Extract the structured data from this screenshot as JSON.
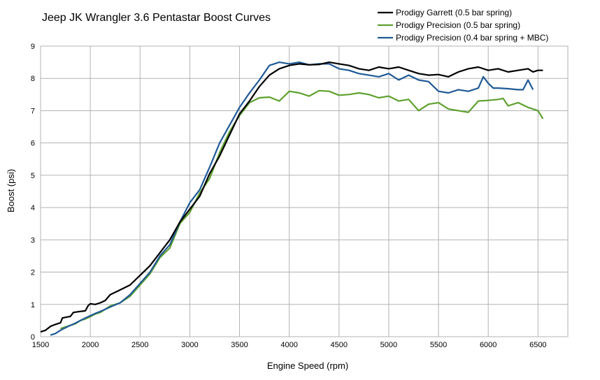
{
  "chart_data": {
    "type": "line",
    "title": "Jeep JK Wrangler 3.6 Pentastar Boost Curves",
    "xlabel": "Engine Speed (rpm)",
    "ylabel": "Boost (psi)",
    "xlim": [
      1500,
      6800
    ],
    "ylim": [
      0,
      9
    ],
    "x_ticks": [
      "1500",
      "2000",
      "2500",
      "3000",
      "3500",
      "4000",
      "4500",
      "5000",
      "5500",
      "6000",
      "6500"
    ],
    "y_ticks": [
      "0",
      "1",
      "2",
      "3",
      "4",
      "5",
      "6",
      "7",
      "8",
      "9"
    ],
    "grid": true,
    "legend_position": "top-right",
    "series": [
      {
        "name": "Prodigy Garrett (0.5 bar spring)",
        "color": "#000000",
        "points": [
          [
            1500,
            0.15
          ],
          [
            1550,
            0.2
          ],
          [
            1600,
            0.32
          ],
          [
            1650,
            0.38
          ],
          [
            1700,
            0.43
          ],
          [
            1720,
            0.58
          ],
          [
            1750,
            0.6
          ],
          [
            1800,
            0.63
          ],
          [
            1830,
            0.75
          ],
          [
            1870,
            0.77
          ],
          [
            1950,
            0.8
          ],
          [
            1980,
            0.97
          ],
          [
            2000,
            1.02
          ],
          [
            2050,
            1.0
          ],
          [
            2100,
            1.05
          ],
          [
            2150,
            1.12
          ],
          [
            2200,
            1.3
          ],
          [
            2300,
            1.45
          ],
          [
            2400,
            1.6
          ],
          [
            2500,
            1.9
          ],
          [
            2600,
            2.2
          ],
          [
            2700,
            2.6
          ],
          [
            2800,
            3.0
          ],
          [
            2900,
            3.55
          ],
          [
            3000,
            3.95
          ],
          [
            3100,
            4.35
          ],
          [
            3200,
            5.05
          ],
          [
            3300,
            5.6
          ],
          [
            3400,
            6.25
          ],
          [
            3500,
            6.9
          ],
          [
            3600,
            7.3
          ],
          [
            3700,
            7.75
          ],
          [
            3800,
            8.1
          ],
          [
            3900,
            8.3
          ],
          [
            4000,
            8.4
          ],
          [
            4100,
            8.45
          ],
          [
            4200,
            8.42
          ],
          [
            4300,
            8.43
          ],
          [
            4400,
            8.5
          ],
          [
            4500,
            8.45
          ],
          [
            4600,
            8.4
          ],
          [
            4700,
            8.3
          ],
          [
            4800,
            8.25
          ],
          [
            4900,
            8.35
          ],
          [
            5000,
            8.3
          ],
          [
            5100,
            8.35
          ],
          [
            5200,
            8.25
          ],
          [
            5300,
            8.15
          ],
          [
            5400,
            8.1
          ],
          [
            5500,
            8.12
          ],
          [
            5600,
            8.05
          ],
          [
            5700,
            8.2
          ],
          [
            5800,
            8.3
          ],
          [
            5900,
            8.35
          ],
          [
            6000,
            8.25
          ],
          [
            6100,
            8.3
          ],
          [
            6200,
            8.2
          ],
          [
            6300,
            8.25
          ],
          [
            6400,
            8.3
          ],
          [
            6450,
            8.2
          ],
          [
            6500,
            8.25
          ],
          [
            6550,
            8.25
          ]
        ]
      },
      {
        "name": "Prodigy Precision (0.5 bar spring)",
        "color": "#5ea12e",
        "points": [
          [
            1700,
            0.25
          ],
          [
            1750,
            0.3
          ],
          [
            1800,
            0.35
          ],
          [
            1850,
            0.4
          ],
          [
            1900,
            0.5
          ],
          [
            1950,
            0.55
          ],
          [
            2000,
            0.62
          ],
          [
            2050,
            0.7
          ],
          [
            2100,
            0.75
          ],
          [
            2150,
            0.85
          ],
          [
            2200,
            0.95
          ],
          [
            2300,
            1.05
          ],
          [
            2400,
            1.25
          ],
          [
            2500,
            1.6
          ],
          [
            2600,
            1.95
          ],
          [
            2700,
            2.45
          ],
          [
            2800,
            2.75
          ],
          [
            2900,
            3.5
          ],
          [
            3000,
            3.85
          ],
          [
            3100,
            4.45
          ],
          [
            3200,
            4.9
          ],
          [
            3300,
            5.7
          ],
          [
            3400,
            6.35
          ],
          [
            3500,
            6.85
          ],
          [
            3600,
            7.25
          ],
          [
            3700,
            7.4
          ],
          [
            3800,
            7.42
          ],
          [
            3900,
            7.3
          ],
          [
            4000,
            7.6
          ],
          [
            4100,
            7.55
          ],
          [
            4200,
            7.45
          ],
          [
            4300,
            7.62
          ],
          [
            4400,
            7.6
          ],
          [
            4500,
            7.48
          ],
          [
            4600,
            7.5
          ],
          [
            4700,
            7.55
          ],
          [
            4800,
            7.5
          ],
          [
            4900,
            7.4
          ],
          [
            5000,
            7.45
          ],
          [
            5100,
            7.3
          ],
          [
            5200,
            7.35
          ],
          [
            5300,
            7.0
          ],
          [
            5400,
            7.2
          ],
          [
            5500,
            7.25
          ],
          [
            5600,
            7.05
          ],
          [
            5700,
            7.0
          ],
          [
            5800,
            6.95
          ],
          [
            5900,
            7.3
          ],
          [
            6000,
            7.32
          ],
          [
            6100,
            7.35
          ],
          [
            6150,
            7.38
          ],
          [
            6200,
            7.15
          ],
          [
            6300,
            7.25
          ],
          [
            6400,
            7.1
          ],
          [
            6450,
            7.05
          ],
          [
            6500,
            7.0
          ],
          [
            6550,
            6.75
          ]
        ]
      },
      {
        "name": "Prodigy Precision (0.4 bar spring + MBC)",
        "color": "#1f5a96",
        "points": [
          [
            1600,
            0.05
          ],
          [
            1650,
            0.1
          ],
          [
            1700,
            0.2
          ],
          [
            1750,
            0.28
          ],
          [
            1800,
            0.35
          ],
          [
            1850,
            0.42
          ],
          [
            1900,
            0.5
          ],
          [
            1950,
            0.58
          ],
          [
            2000,
            0.65
          ],
          [
            2050,
            0.72
          ],
          [
            2100,
            0.78
          ],
          [
            2150,
            0.85
          ],
          [
            2200,
            0.92
          ],
          [
            2300,
            1.05
          ],
          [
            2400,
            1.3
          ],
          [
            2500,
            1.65
          ],
          [
            2600,
            2.0
          ],
          [
            2700,
            2.5
          ],
          [
            2800,
            2.85
          ],
          [
            2900,
            3.55
          ],
          [
            3000,
            4.15
          ],
          [
            3100,
            4.55
          ],
          [
            3200,
            5.25
          ],
          [
            3300,
            6.0
          ],
          [
            3400,
            6.55
          ],
          [
            3500,
            7.1
          ],
          [
            3600,
            7.55
          ],
          [
            3700,
            7.95
          ],
          [
            3800,
            8.4
          ],
          [
            3900,
            8.5
          ],
          [
            4000,
            8.45
          ],
          [
            4100,
            8.5
          ],
          [
            4200,
            8.42
          ],
          [
            4300,
            8.45
          ],
          [
            4400,
            8.45
          ],
          [
            4500,
            8.3
          ],
          [
            4600,
            8.25
          ],
          [
            4700,
            8.15
          ],
          [
            4800,
            8.1
          ],
          [
            4900,
            8.05
          ],
          [
            5000,
            8.15
          ],
          [
            5100,
            7.95
          ],
          [
            5200,
            8.1
          ],
          [
            5300,
            7.95
          ],
          [
            5400,
            7.9
          ],
          [
            5500,
            7.6
          ],
          [
            5600,
            7.55
          ],
          [
            5700,
            7.65
          ],
          [
            5800,
            7.6
          ],
          [
            5900,
            7.7
          ],
          [
            5950,
            8.05
          ],
          [
            6000,
            7.85
          ],
          [
            6050,
            7.7
          ],
          [
            6100,
            7.7
          ],
          [
            6200,
            7.68
          ],
          [
            6300,
            7.65
          ],
          [
            6350,
            7.65
          ],
          [
            6400,
            7.95
          ],
          [
            6450,
            7.65
          ]
        ]
      }
    ]
  }
}
